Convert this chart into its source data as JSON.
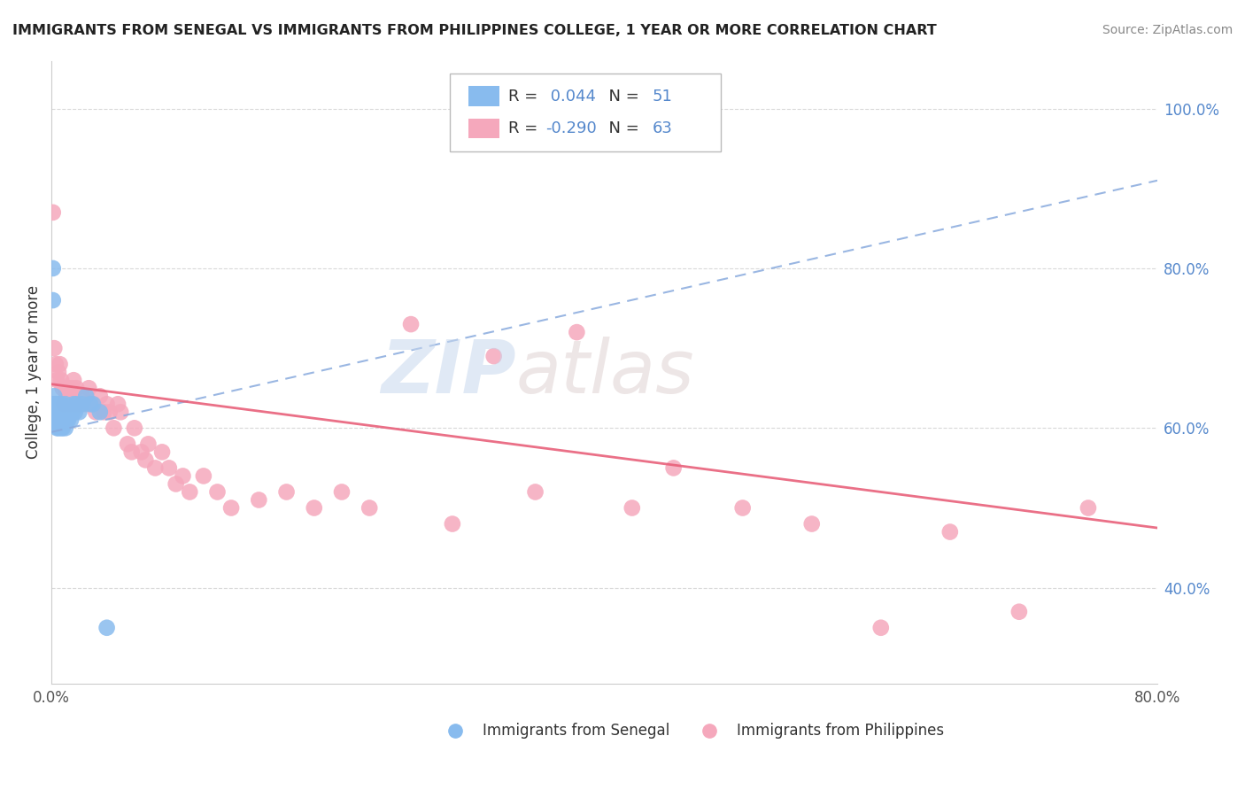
{
  "title": "IMMIGRANTS FROM SENEGAL VS IMMIGRANTS FROM PHILIPPINES COLLEGE, 1 YEAR OR MORE CORRELATION CHART",
  "source": "Source: ZipAtlas.com",
  "ylabel": "College, 1 year or more",
  "bg_color": "#ffffff",
  "grid_color": "#d0d0d0",
  "watermark_zip": "ZIP",
  "watermark_atlas": "atlas",
  "senegal_color": "#88bbee",
  "philippines_color": "#f5a8bc",
  "senegal_line_color": "#88aadd",
  "philippines_line_color": "#e8607a",
  "R_senegal": 0.044,
  "N_senegal": 51,
  "R_philippines": -0.29,
  "N_philippines": 63,
  "legend_label_senegal": "Immigrants from Senegal",
  "legend_label_philippines": "Immigrants from Philippines",
  "xmin": 0.0,
  "xmax": 0.8,
  "ymin": 0.28,
  "ymax": 1.06,
  "right_yticks": [
    0.4,
    0.6,
    0.8,
    1.0
  ],
  "right_yticklabels": [
    "40.0%",
    "60.0%",
    "80.0%",
    "100.0%"
  ],
  "senegal_line_x0": 0.0,
  "senegal_line_y0": 0.595,
  "senegal_line_x1": 0.8,
  "senegal_line_y1": 0.91,
  "philippines_line_x0": 0.0,
  "philippines_line_y0": 0.655,
  "philippines_line_x1": 0.8,
  "philippines_line_y1": 0.475,
  "senegal_x": [
    0.001,
    0.001,
    0.001,
    0.002,
    0.002,
    0.002,
    0.002,
    0.002,
    0.003,
    0.003,
    0.003,
    0.003,
    0.004,
    0.004,
    0.004,
    0.004,
    0.005,
    0.005,
    0.005,
    0.005,
    0.006,
    0.006,
    0.006,
    0.007,
    0.007,
    0.007,
    0.008,
    0.008,
    0.008,
    0.009,
    0.009,
    0.01,
    0.01,
    0.01,
    0.011,
    0.011,
    0.012,
    0.012,
    0.013,
    0.014,
    0.015,
    0.016,
    0.017,
    0.018,
    0.02,
    0.022,
    0.025,
    0.028,
    0.03,
    0.035,
    0.04
  ],
  "senegal_y": [
    0.76,
    0.8,
    0.63,
    0.62,
    0.63,
    0.64,
    0.62,
    0.61,
    0.62,
    0.63,
    0.62,
    0.61,
    0.63,
    0.62,
    0.61,
    0.6,
    0.62,
    0.61,
    0.63,
    0.6,
    0.62,
    0.63,
    0.61,
    0.62,
    0.63,
    0.6,
    0.62,
    0.61,
    0.6,
    0.62,
    0.61,
    0.63,
    0.62,
    0.6,
    0.62,
    0.61,
    0.62,
    0.61,
    0.62,
    0.61,
    0.62,
    0.63,
    0.62,
    0.63,
    0.62,
    0.63,
    0.64,
    0.63,
    0.63,
    0.62,
    0.35
  ],
  "philippines_x": [
    0.001,
    0.002,
    0.003,
    0.004,
    0.005,
    0.006,
    0.007,
    0.008,
    0.009,
    0.01,
    0.011,
    0.012,
    0.013,
    0.015,
    0.016,
    0.017,
    0.018,
    0.02,
    0.022,
    0.025,
    0.027,
    0.03,
    0.032,
    0.035,
    0.038,
    0.04,
    0.042,
    0.045,
    0.048,
    0.05,
    0.055,
    0.058,
    0.06,
    0.065,
    0.068,
    0.07,
    0.075,
    0.08,
    0.085,
    0.09,
    0.095,
    0.1,
    0.11,
    0.12,
    0.13,
    0.15,
    0.17,
    0.19,
    0.21,
    0.23,
    0.26,
    0.29,
    0.32,
    0.35,
    0.38,
    0.42,
    0.45,
    0.5,
    0.55,
    0.6,
    0.65,
    0.7,
    0.75
  ],
  "philippines_y": [
    0.87,
    0.7,
    0.68,
    0.66,
    0.67,
    0.68,
    0.66,
    0.65,
    0.63,
    0.65,
    0.64,
    0.65,
    0.63,
    0.65,
    0.66,
    0.63,
    0.65,
    0.63,
    0.64,
    0.63,
    0.65,
    0.63,
    0.62,
    0.64,
    0.62,
    0.63,
    0.62,
    0.6,
    0.63,
    0.62,
    0.58,
    0.57,
    0.6,
    0.57,
    0.56,
    0.58,
    0.55,
    0.57,
    0.55,
    0.53,
    0.54,
    0.52,
    0.54,
    0.52,
    0.5,
    0.51,
    0.52,
    0.5,
    0.52,
    0.5,
    0.73,
    0.48,
    0.69,
    0.52,
    0.72,
    0.5,
    0.55,
    0.5,
    0.48,
    0.35,
    0.47,
    0.37,
    0.5
  ]
}
